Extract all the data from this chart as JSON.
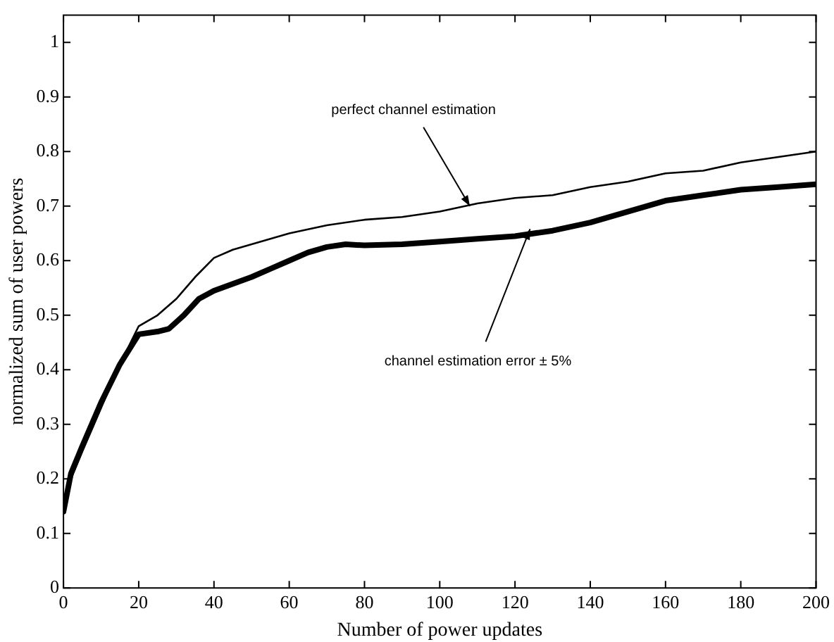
{
  "chart_data": {
    "type": "line",
    "xlabel": "Number of power updates",
    "ylabel": "normalized sum of user powers",
    "xlim": [
      0,
      200
    ],
    "xticks": [
      0,
      20,
      40,
      60,
      80,
      100,
      120,
      140,
      160,
      180,
      200
    ],
    "ylim": [
      0,
      1.05
    ],
    "yticks": [
      0,
      0.1,
      0.2,
      0.3,
      0.4,
      0.5,
      0.6,
      0.7,
      0.8,
      0.9,
      1
    ],
    "grid": false,
    "legend": false,
    "series": [
      {
        "color": "#000000",
        "line_style": "solid",
        "x": [
          0,
          2,
          5,
          10,
          15,
          20,
          25,
          30,
          35,
          40,
          45,
          50,
          60,
          70,
          80,
          90,
          100,
          110,
          120,
          130,
          140,
          150,
          160,
          170,
          180,
          190,
          200
        ],
        "values": [
          0.14,
          0.2,
          0.25,
          0.33,
          0.41,
          0.48,
          0.5,
          0.53,
          0.57,
          0.605,
          0.62,
          0.63,
          0.65,
          0.665,
          0.675,
          0.68,
          0.69,
          0.705,
          0.715,
          0.72,
          0.735,
          0.745,
          0.76,
          0.765,
          0.78,
          0.79,
          0.8
        ]
      },
      {
        "color": "#000000",
        "line_style": "solid",
        "x": [
          0,
          2,
          5,
          10,
          15,
          20,
          25,
          28,
          32,
          36,
          40,
          50,
          55,
          60,
          65,
          70,
          75,
          80,
          90,
          100,
          110,
          120,
          130,
          140,
          150,
          160,
          170,
          180,
          190,
          200
        ],
        "values": [
          0.14,
          0.21,
          0.26,
          0.34,
          0.41,
          0.465,
          0.47,
          0.475,
          0.5,
          0.53,
          0.545,
          0.57,
          0.585,
          0.6,
          0.615,
          0.625,
          0.63,
          0.628,
          0.63,
          0.635,
          0.64,
          0.645,
          0.655,
          0.67,
          0.69,
          0.71,
          0.72,
          0.73,
          0.735,
          0.74
        ]
      }
    ],
    "annotations": [
      {
        "text": "perfect channel estimation",
        "x": 108,
        "y": 0.7
      },
      {
        "text": "channel estimation error ± 5%",
        "x": 124,
        "y": 0.658
      }
    ]
  }
}
